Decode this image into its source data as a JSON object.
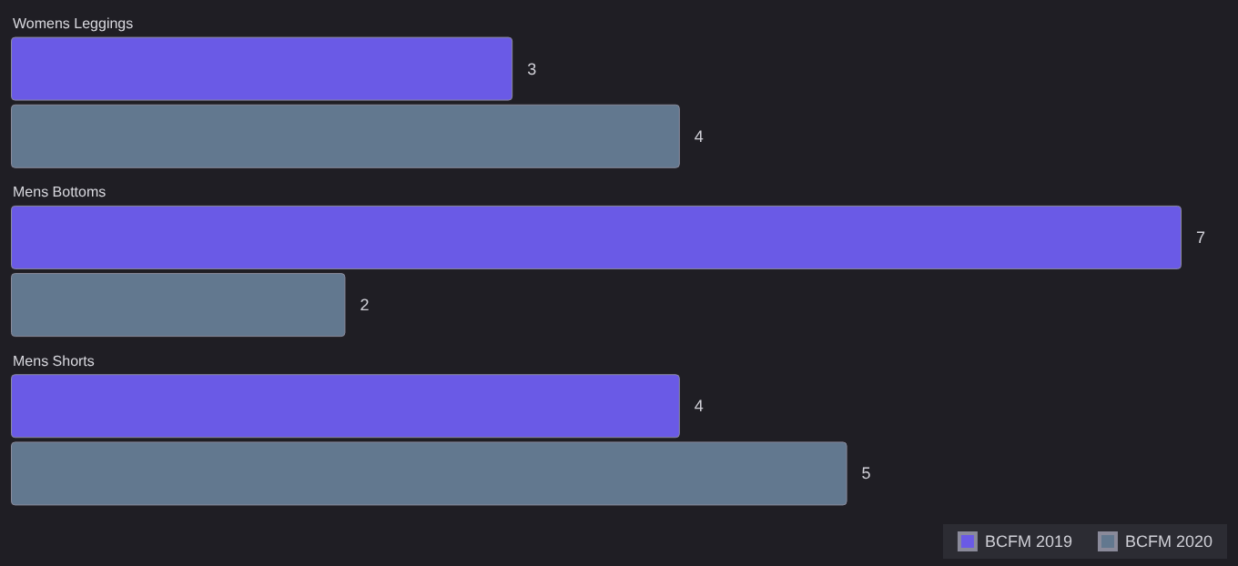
{
  "chart_data": {
    "type": "bar",
    "orientation": "horizontal",
    "categories": [
      "Womens Leggings",
      "Mens Bottoms",
      "Mens Shorts"
    ],
    "series": [
      {
        "name": "BCFM 2019",
        "color": "#6a5ae6",
        "values": [
          3,
          7,
          4
        ]
      },
      {
        "name": "BCFM 2020",
        "color": "#62788f",
        "values": [
          4,
          2,
          5
        ]
      }
    ],
    "xlim": [
      0,
      7
    ],
    "data_labels": true,
    "legend": "bottom right",
    "grid": false
  }
}
